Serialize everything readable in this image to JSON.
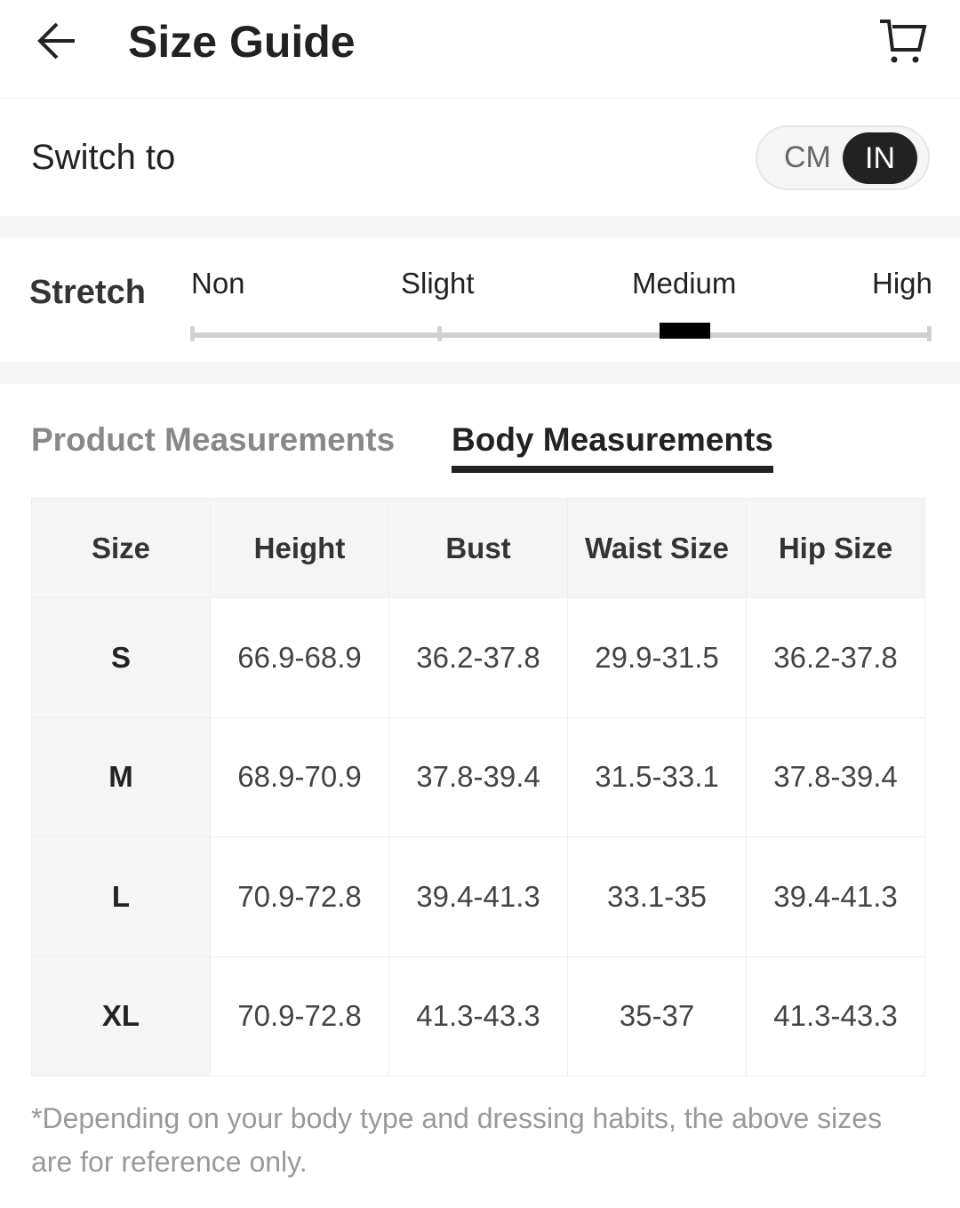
{
  "header": {
    "title": "Size Guide",
    "back_icon": "arrow-left-icon",
    "cart_icon": "cart-icon"
  },
  "units": {
    "label": "Switch to",
    "options": [
      "CM",
      "IN"
    ],
    "selected": "IN"
  },
  "stretch": {
    "label": "Stretch",
    "levels": [
      "Non",
      "Slight",
      "Medium",
      "High"
    ],
    "selected": "Medium"
  },
  "tabs": [
    {
      "label": "Product Measurements",
      "active": false
    },
    {
      "label": "Body Measurements",
      "active": true
    }
  ],
  "table": {
    "headers": [
      "Size",
      "Height",
      "Bust",
      "Waist Size",
      "Hip Size"
    ],
    "rows": [
      [
        "S",
        "66.9-68.9",
        "36.2-37.8",
        "29.9-31.5",
        "36.2-37.8"
      ],
      [
        "M",
        "68.9-70.9",
        "37.8-39.4",
        "31.5-33.1",
        "37.8-39.4"
      ],
      [
        "L",
        "70.9-72.8",
        "39.4-41.3",
        "33.1-35",
        "39.4-41.3"
      ],
      [
        "XL",
        "70.9-72.8",
        "41.3-43.3",
        "35-37",
        "41.3-43.3"
      ]
    ]
  },
  "note": "*Depending on your body type and dressing habits, the above sizes are for reference only."
}
